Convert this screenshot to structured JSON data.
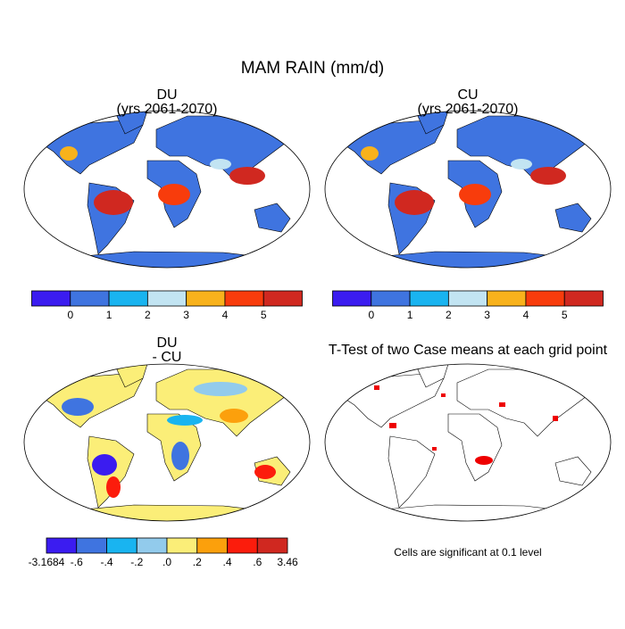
{
  "title": "MAM RAIN (mm/d)",
  "panels": [
    {
      "title": [
        "DU",
        "(yrs 2061-2070)"
      ]
    },
    {
      "title": [
        "CU",
        "(yrs 2061-2070)"
      ]
    },
    {
      "title": [
        "DU",
        "- CU"
      ]
    },
    {
      "title": [
        "T-Test of two Case means at each grid point"
      ]
    }
  ],
  "colorbars": [
    {
      "colors": [
        "#3b1cf0",
        "#3f74e0",
        "#19b4f0",
        "#c2e4f2",
        "#f8b21c",
        "#f83c0c",
        "#d02820"
      ],
      "labels": [
        "0",
        "1",
        "2",
        "3",
        "4",
        "5"
      ]
    },
    {
      "colors": [
        "#3b1cf0",
        "#3f74e0",
        "#19b4f0",
        "#92cbec",
        "#fbee78",
        "#fca00c",
        "#fc1c0c",
        "#d02820"
      ],
      "labels": [
        "-3.1684",
        "-.6",
        "-.4",
        "-.2",
        ".0",
        ".2",
        ".4",
        ".6",
        "3.46"
      ]
    }
  ],
  "footnote": "Cells are significant at 0.1 level"
}
